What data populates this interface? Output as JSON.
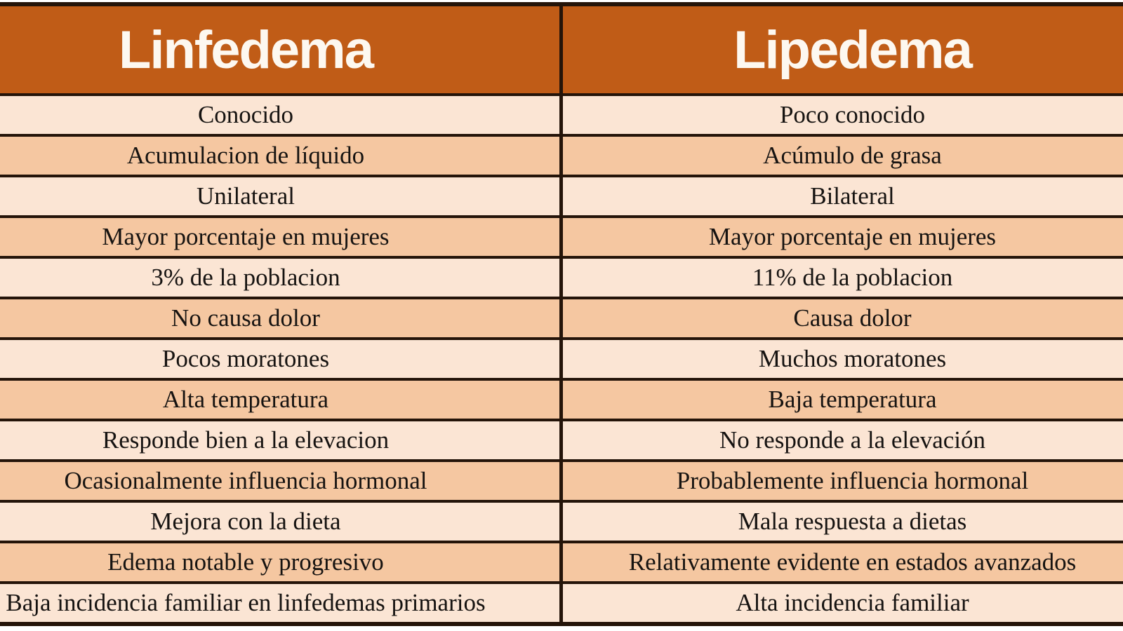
{
  "chart_data": {
    "type": "table",
    "columns": [
      "Linfedema",
      "Lipedema"
    ],
    "rows": [
      [
        "Conocido",
        "Poco conocido"
      ],
      [
        "Acumulacion de líquido",
        "Acúmulo de grasa"
      ],
      [
        "Unilateral",
        "Bilateral"
      ],
      [
        "Mayor porcentaje en mujeres",
        "Mayor porcentaje en mujeres"
      ],
      [
        "3% de la poblacion",
        "11% de la poblacion"
      ],
      [
        "No causa dolor",
        "Causa dolor"
      ],
      [
        "Pocos moratones",
        "Muchos moratones"
      ],
      [
        "Alta temperatura",
        "Baja temperatura"
      ],
      [
        "Responde bien a la elevacion",
        "No responde a la elevación"
      ],
      [
        "Ocasionalmente influencia hormonal",
        "Probablemente influencia hormonal"
      ],
      [
        "Mejora con la dieta",
        "Mala respuesta a dietas"
      ],
      [
        "Edema notable y progresivo",
        "Relativamente evidente en estados avanzados"
      ],
      [
        "Baja incidencia familiar en linfedemas primarios",
        "Alta incidencia familiar"
      ]
    ],
    "layout": {
      "grid": "on",
      "row_striping": [
        "light",
        "dark"
      ],
      "cropped_edges": [
        "left",
        "right"
      ]
    }
  },
  "colors": {
    "header_bg": "#c05c17",
    "border": "#241409",
    "row_light": "#fbe5d4",
    "row_dark": "#f5c7a1",
    "header_text": "#fdf8f0",
    "row_text": "#161311",
    "page_bg": "#ffffff"
  }
}
